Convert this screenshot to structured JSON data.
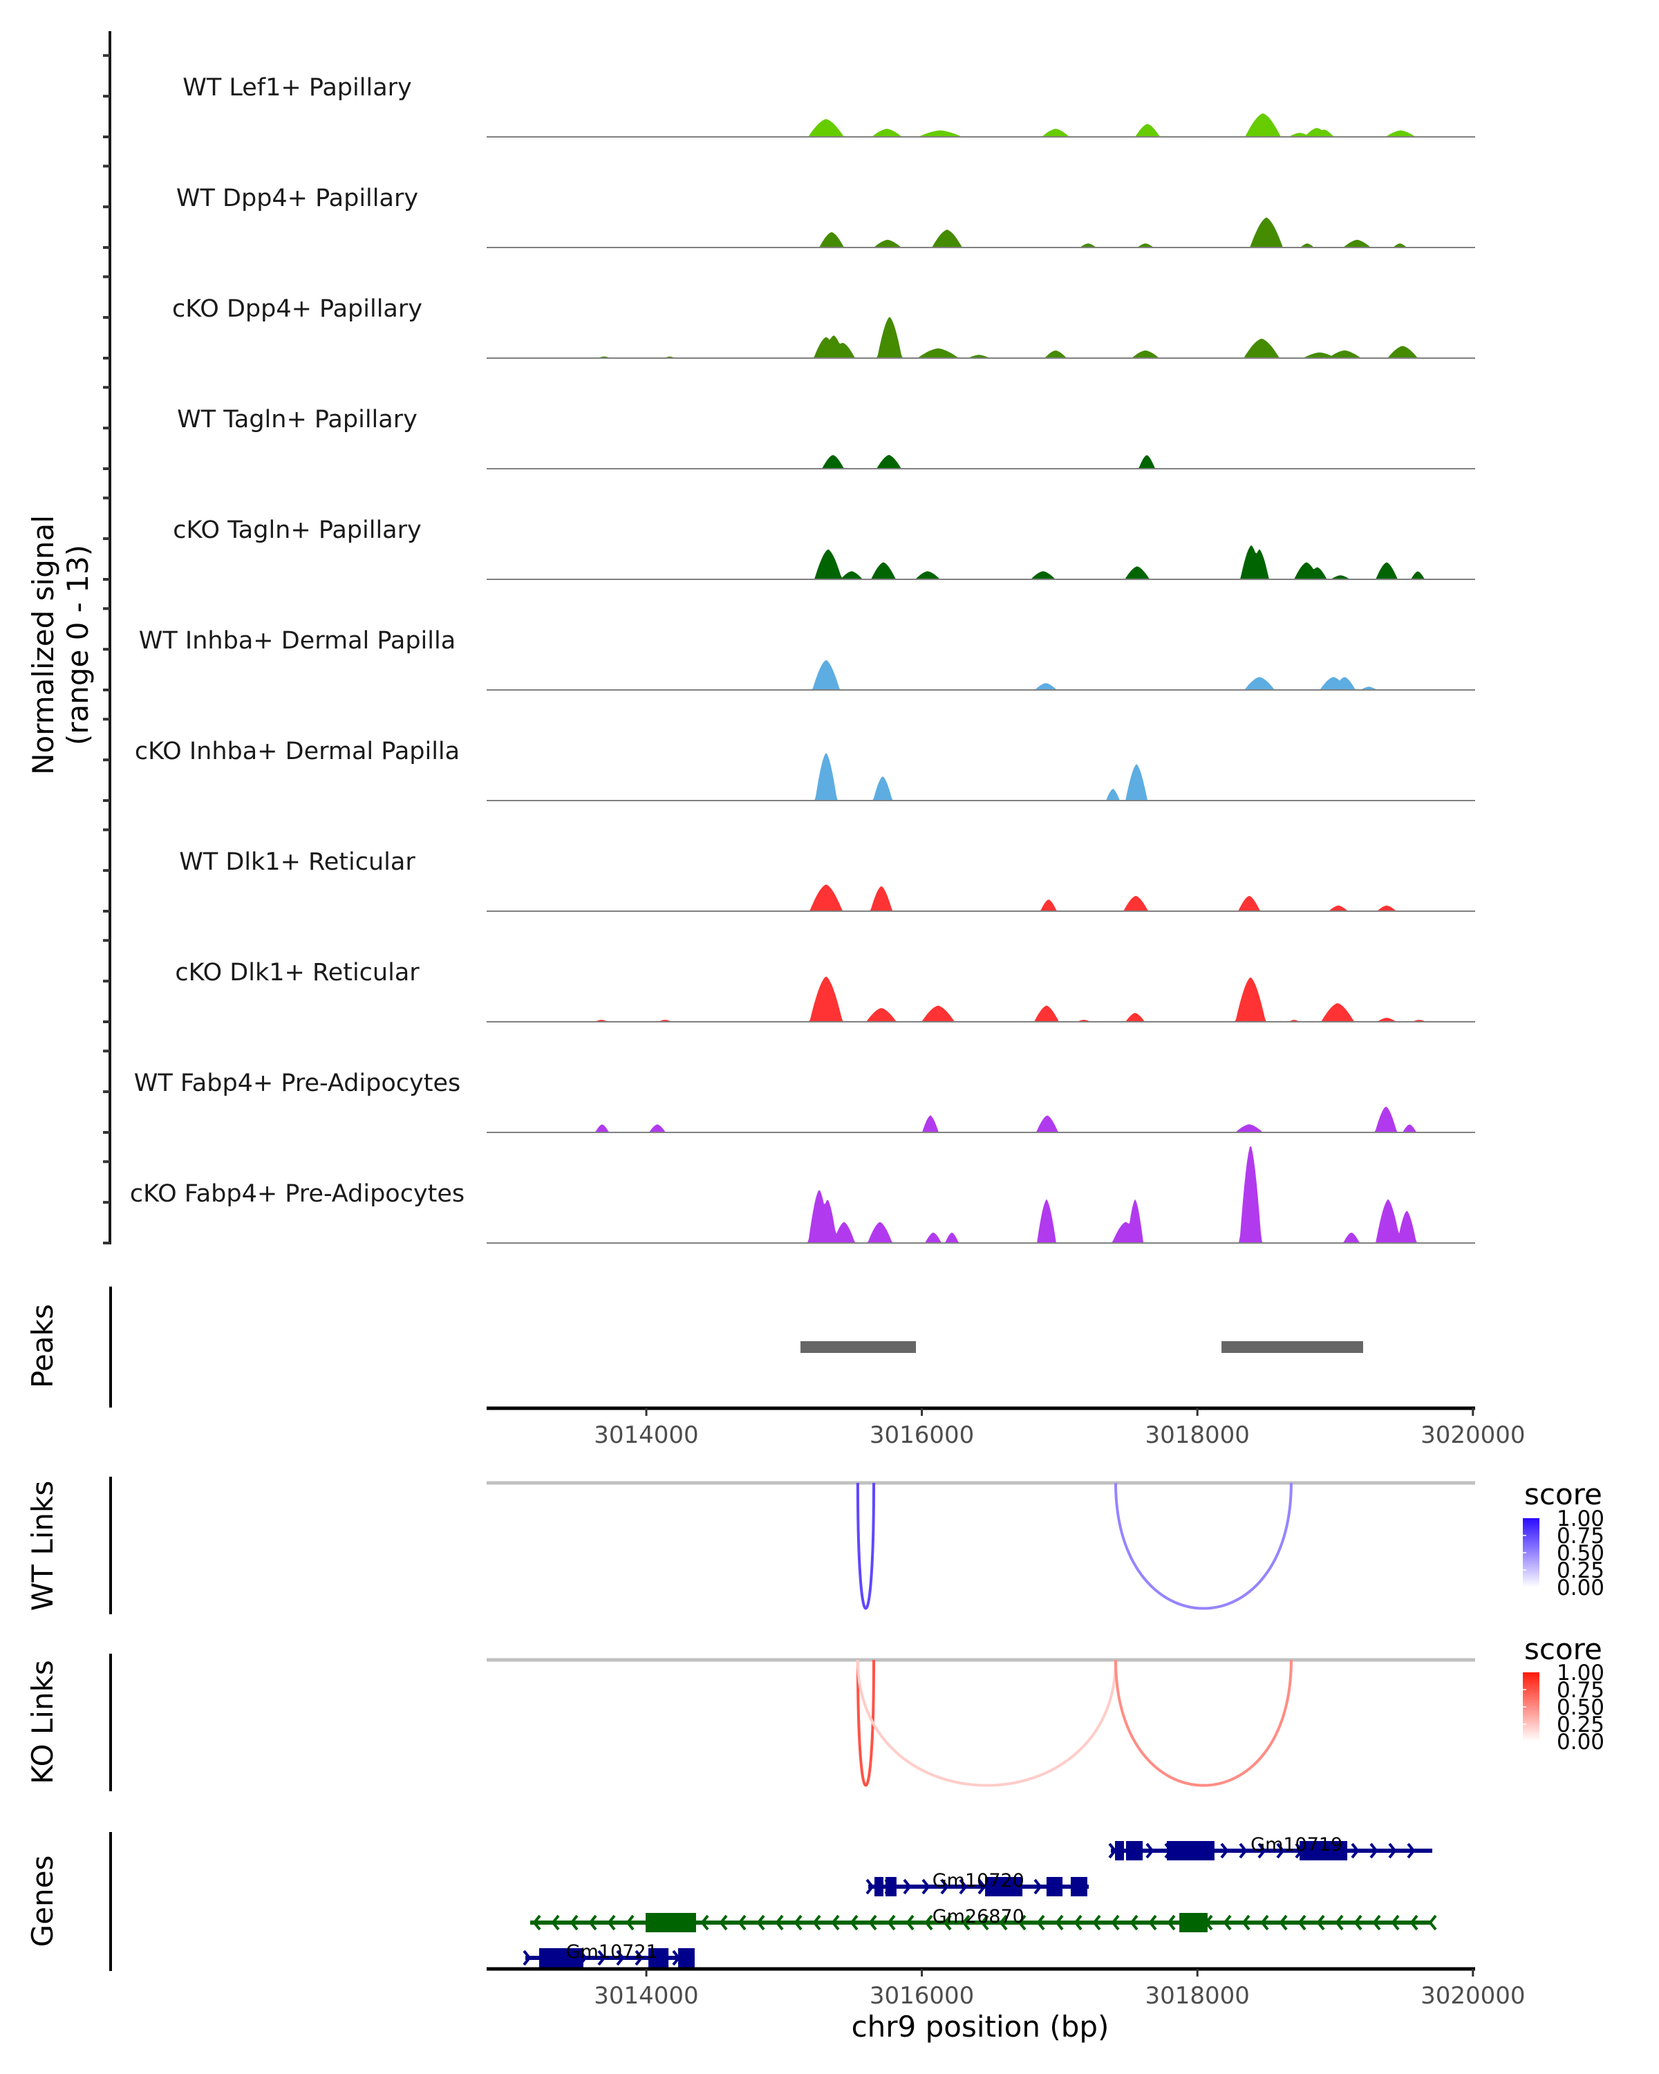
{
  "chart_data": {
    "type": "area",
    "title": "",
    "region": {
      "chromosome": "chr9",
      "start": 3012841,
      "end": 3020016
    },
    "xlabel": "chr9 position (bp)",
    "x_ticks": [
      3014000,
      3016000,
      3018000,
      3020000
    ],
    "x_tick_labels": [
      "3014000",
      "3016000",
      "3018000",
      "3020000"
    ],
    "coverage": {
      "ylabel_line1": "Normalized signal",
      "ylabel_line2": "(range 0 - 13)",
      "ylim": [
        0,
        13
      ],
      "y_ticks": [
        0,
        5,
        10
      ],
      "peak_format": "[center_bp, signal, halfwidth_bp]",
      "tracks": [
        {
          "name": "WT Lef1+ Papillary",
          "color": "#66cc00",
          "peaks": [
            [
              3015305,
              2.2,
              130
            ],
            [
              3015746,
              1.0,
              110
            ],
            [
              3016133,
              0.8,
              160
            ],
            [
              3016971,
              1.0,
              100
            ],
            [
              3017638,
              1.6,
              90
            ],
            [
              3018054,
              0.1,
              50
            ],
            [
              3018476,
              2.9,
              130
            ],
            [
              3018742,
              0.5,
              80
            ],
            [
              3018867,
              1.1,
              90
            ],
            [
              3018920,
              0.9,
              70
            ],
            [
              3019475,
              0.8,
              110
            ]
          ]
        },
        {
          "name": "WT Dpp4+ Papillary",
          "color": "#458b00",
          "peaks": [
            [
              3015345,
              1.9,
              90
            ],
            [
              3015751,
              0.95,
              100
            ],
            [
              3016183,
              2.2,
              110
            ],
            [
              3017207,
              0.5,
              60
            ],
            [
              3017623,
              0.5,
              60
            ],
            [
              3018501,
              3.7,
              120
            ],
            [
              3018797,
              0.5,
              50
            ],
            [
              3019159,
              0.95,
              100
            ],
            [
              3019470,
              0.5,
              50
            ]
          ]
        },
        {
          "name": "cKO Dpp4+ Papillary",
          "color": "#458b00",
          "peaks": [
            [
              3013694,
              0.2,
              50
            ],
            [
              3014171,
              0.2,
              40
            ],
            [
              3015305,
              2.6,
              90
            ],
            [
              3015360,
              2.8,
              80
            ],
            [
              3015425,
              1.9,
              90
            ],
            [
              3015766,
              5.1,
              90
            ],
            [
              3016118,
              1.2,
              150
            ],
            [
              3016414,
              0.4,
              80
            ],
            [
              3016971,
              0.95,
              80
            ],
            [
              3017623,
              0.95,
              100
            ],
            [
              3018466,
              2.4,
              130
            ],
            [
              3018887,
              0.7,
              120
            ],
            [
              3019068,
              0.95,
              120
            ],
            [
              3019490,
              1.5,
              110
            ]
          ]
        },
        {
          "name": "WT Tagln+ Papillary",
          "color": "#006400",
          "peaks": [
            [
              3015355,
              1.7,
              80
            ],
            [
              3015761,
              1.7,
              90
            ],
            [
              3017633,
              1.7,
              60
            ]
          ]
        },
        {
          "name": "cKO Tagln+ Papillary",
          "color": "#006400",
          "peaks": [
            [
              3015320,
              3.7,
              100
            ],
            [
              3015490,
              1.0,
              80
            ],
            [
              3015721,
              2.1,
              90
            ],
            [
              3016042,
              1.0,
              90
            ],
            [
              3016880,
              1.0,
              90
            ],
            [
              3017563,
              1.6,
              90
            ],
            [
              3018391,
              4.2,
              80
            ],
            [
              3018450,
              3.7,
              70
            ],
            [
              3018792,
              2.1,
              90
            ],
            [
              3018870,
              1.5,
              70
            ],
            [
              3019038,
              0.5,
              70
            ],
            [
              3019374,
              2.1,
              80
            ],
            [
              3019600,
              1.0,
              50
            ]
          ]
        },
        {
          "name": "WT Inhba+ Dermal Papilla",
          "color": "#5dade2",
          "peaks": [
            [
              3015305,
              3.7,
              100
            ],
            [
              3016900,
              0.85,
              80
            ],
            [
              3018451,
              1.6,
              110
            ],
            [
              3018988,
              1.6,
              100
            ],
            [
              3019068,
              1.6,
              80
            ],
            [
              3019244,
              0.4,
              60
            ]
          ]
        },
        {
          "name": "cKO Inhba+ Dermal Papilla",
          "color": "#5dade2",
          "peaks": [
            [
              3015305,
              5.9,
              80
            ],
            [
              3015716,
              3.0,
              70
            ],
            [
              3017387,
              1.45,
              50
            ],
            [
              3017558,
              4.5,
              80
            ]
          ]
        },
        {
          "name": "WT Dlk1+ Reticular",
          "color": "#ff3333",
          "peaks": [
            [
              3015305,
              3.3,
              120
            ],
            [
              3015706,
              3.1,
              80
            ],
            [
              3016920,
              1.45,
              60
            ],
            [
              3017553,
              1.9,
              90
            ],
            [
              3018376,
              1.9,
              80
            ],
            [
              3019023,
              0.7,
              70
            ],
            [
              3019374,
              0.7,
              70
            ]
          ]
        },
        {
          "name": "cKO Dlk1+ Reticular",
          "color": "#ff3333",
          "peaks": [
            [
              3013674,
              0.25,
              50
            ],
            [
              3014135,
              0.25,
              50
            ],
            [
              3015305,
              5.6,
              120
            ],
            [
              3015706,
              1.7,
              110
            ],
            [
              3016118,
              2.0,
              120
            ],
            [
              3016905,
              2.0,
              90
            ],
            [
              3017176,
              0.25,
              50
            ],
            [
              3017548,
              1.1,
              70
            ],
            [
              3018386,
              5.5,
              110
            ],
            [
              3018702,
              0.25,
              40
            ],
            [
              3019018,
              2.3,
              120
            ],
            [
              3019374,
              0.5,
              70
            ],
            [
              3019610,
              0.25,
              50
            ]
          ]
        },
        {
          "name": "WT Fabp4+ Pre-Adipocytes",
          "color": "#b23aee",
          "peaks": [
            [
              3013679,
              1.0,
              50
            ],
            [
              3014080,
              1.0,
              60
            ],
            [
              3016062,
              2.1,
              60
            ],
            [
              3016910,
              2.1,
              80
            ],
            [
              3018376,
              1.0,
              100
            ],
            [
              3019369,
              3.2,
              80
            ],
            [
              3019540,
              1.0,
              50
            ]
          ]
        },
        {
          "name": "cKO Fabp4+ Pre-Adipocytes",
          "color": "#b23aee",
          "peaks": [
            [
              3015255,
              6.6,
              80
            ],
            [
              3015315,
              5.4,
              70
            ],
            [
              3015435,
              2.6,
              80
            ],
            [
              3015696,
              2.6,
              90
            ],
            [
              3016083,
              1.3,
              60
            ],
            [
              3016218,
              1.3,
              50
            ],
            [
              3016905,
              5.4,
              70
            ],
            [
              3017480,
              2.6,
              100
            ],
            [
              3017548,
              5.4,
              60
            ],
            [
              3018386,
              12.1,
              80
            ],
            [
              3019118,
              1.3,
              60
            ],
            [
              3019384,
              5.4,
              90
            ],
            [
              3019520,
              4.0,
              70
            ]
          ]
        }
      ]
    },
    "peaks_track": {
      "label": "Peaks",
      "color": "#666666",
      "ranges": [
        [
          3015119,
          3015957
        ],
        [
          3018175,
          3019203
        ]
      ]
    },
    "links": [
      {
        "label": "WT Links",
        "legend_title": "score",
        "legend_ticks": [
          "1.00",
          "0.75",
          "0.50",
          "0.25",
          "0.00"
        ],
        "high_color": "#2b0bff",
        "format": "[start_bp, end_bp, score]",
        "arcs": [
          [
            3015535,
            3015651,
            0.75
          ],
          [
            3017407,
            3018681,
            0.5
          ]
        ]
      },
      {
        "label": "KO Links",
        "legend_title": "score",
        "legend_ticks": [
          "1.00",
          "0.75",
          "0.50",
          "0.25",
          "0.00"
        ],
        "high_color": "#ff1a0a",
        "format": "[start_bp, end_bp, score]",
        "arcs": [
          [
            3015535,
            3015651,
            0.75
          ],
          [
            3015535,
            3017407,
            0.22
          ],
          [
            3017407,
            3018681,
            0.5
          ]
        ]
      }
    ],
    "genes": {
      "label": "Genes",
      "format": "exons as [start_bp, end_bp]",
      "items": [
        {
          "name": "Gm10719",
          "strand": "+",
          "color": "#00008b",
          "row": 0,
          "start": 3017372,
          "end": 3019705,
          "exons": [
            [
              3017402,
              3017467
            ],
            [
              3017482,
              3017603
            ],
            [
              3017778,
              3018124
            ],
            [
              3018742,
              3019088
            ]
          ],
          "label_bp": 3018720
        },
        {
          "name": "Gm10720",
          "strand": "+",
          "color": "#00008b",
          "row": 1,
          "start": 3015611,
          "end": 3017212,
          "exons": [
            [
              3015656,
              3015721
            ],
            [
              3015736,
              3015816
            ],
            [
              3016459,
              3016730
            ],
            [
              3016905,
              3017021
            ],
            [
              3017081,
              3017201
            ]
          ],
          "label_bp": 3016410
        },
        {
          "name": "Gm26870",
          "strand": "-",
          "color": "#006400",
          "row": 2,
          "start": 3013157,
          "end": 3019690,
          "exons": [
            [
              3013995,
              3014361
            ],
            [
              3017869,
              3018074
            ]
          ],
          "label_bp": 3016410
        },
        {
          "name": "Gm10721",
          "strand": "+",
          "color": "#00008b",
          "row": 3,
          "start": 3013122,
          "end": 3014351,
          "exons": [
            [
              3013222,
              3013543
            ],
            [
              3014015,
              3014161
            ],
            [
              3014231,
              3014351
            ]
          ],
          "label_bp": 3013750
        }
      ]
    }
  }
}
